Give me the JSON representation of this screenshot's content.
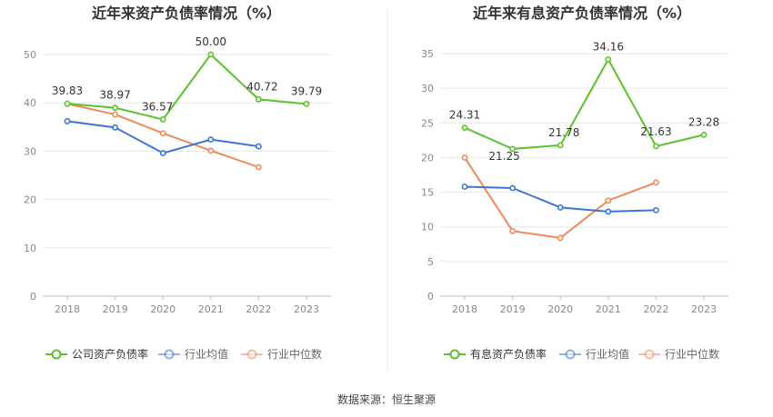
{
  "chart_data": [
    {
      "type": "line",
      "title": "近年来资产负债率情况（%）",
      "categories": [
        "2018",
        "2019",
        "2020",
        "2021",
        "2022",
        "2023"
      ],
      "ylim": [
        0,
        50
      ],
      "yticks": [
        0,
        10,
        20,
        30,
        40,
        50
      ],
      "xlabel": "",
      "ylabel": "",
      "series": [
        {
          "name": "公司资产负债率",
          "color": "#5bc22b",
          "values": [
            39.83,
            38.97,
            36.57,
            50.0,
            40.72,
            39.79
          ],
          "value_labels": [
            "39.83",
            "38.97",
            "36.57",
            "50.00",
            "40.72",
            "39.79"
          ]
        },
        {
          "name": "行业均值",
          "color": "#3d74d4",
          "values": [
            36.2,
            34.9,
            29.6,
            32.4,
            31.0,
            null
          ]
        },
        {
          "name": "行业中位数",
          "color": "#f0895a",
          "values": [
            39.8,
            37.6,
            33.7,
            30.1,
            26.7,
            null
          ]
        }
      ]
    },
    {
      "type": "line",
      "title": "近年来有息资产负债率情况（%）",
      "categories": [
        "2018",
        "2019",
        "2020",
        "2021",
        "2022",
        "2023"
      ],
      "ylim": [
        0,
        35
      ],
      "yticks": [
        0,
        5,
        10,
        15,
        20,
        25,
        30,
        35
      ],
      "xlabel": "",
      "ylabel": "",
      "series": [
        {
          "name": "有息资产负债率",
          "color": "#5bc22b",
          "values": [
            24.31,
            21.25,
            21.78,
            34.16,
            21.63,
            23.28
          ],
          "value_labels": [
            "24.31",
            "21.25",
            "21.78",
            "34.16",
            "21.63",
            "23.28"
          ]
        },
        {
          "name": "行业均值",
          "color": "#3d74d4",
          "values": [
            15.8,
            15.6,
            12.8,
            12.2,
            12.4,
            null
          ]
        },
        {
          "name": "行业中位数",
          "color": "#f0895a",
          "values": [
            20.0,
            9.4,
            8.4,
            13.8,
            16.4,
            null
          ]
        }
      ]
    }
  ],
  "source_text": "数据来源：恒生聚源"
}
